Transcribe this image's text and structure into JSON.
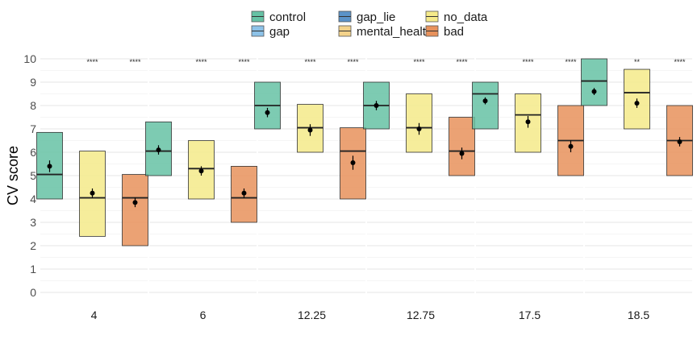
{
  "chart_data": {
    "type": "boxplot",
    "ylabel": "CV score",
    "ylim": [
      0,
      10
    ],
    "yticks": [
      0,
      1,
      2,
      3,
      4,
      5,
      6,
      7,
      8,
      9,
      10
    ],
    "legend": {
      "placement": "top",
      "entries": [
        {
          "name": "control",
          "color": "#66c2a5"
        },
        {
          "name": "gap",
          "color": "#8dc2e8"
        },
        {
          "name": "gap_lie",
          "color": "#5b93c9"
        },
        {
          "name": "mental_health",
          "color": "#f3d28a"
        },
        {
          "name": "no_data",
          "color": "#f5ea8a"
        },
        {
          "name": "bad",
          "color": "#e8925c"
        }
      ]
    },
    "panels": [
      {
        "label": "4",
        "boxes": [
          {
            "series": "control",
            "q1": 4,
            "median": 5.05,
            "q3": 6.85,
            "mean": 5.4,
            "err": 0.25,
            "stars": ""
          },
          {
            "series": "no_data",
            "q1": 2.4,
            "median": 4.05,
            "q3": 6.05,
            "mean": 4.25,
            "err": 0.2,
            "stars": "****"
          },
          {
            "series": "bad",
            "q1": 2,
            "median": 4.05,
            "q3": 5.05,
            "mean": 3.85,
            "err": 0.2,
            "stars": "****"
          }
        ]
      },
      {
        "label": "6",
        "boxes": [
          {
            "series": "control",
            "q1": 5,
            "median": 6.05,
            "q3": 7.3,
            "mean": 6.1,
            "err": 0.2,
            "stars": ""
          },
          {
            "series": "no_data",
            "q1": 4,
            "median": 5.3,
            "q3": 6.5,
            "mean": 5.2,
            "err": 0.2,
            "stars": "****"
          },
          {
            "series": "bad",
            "q1": 3,
            "median": 4.05,
            "q3": 5.4,
            "mean": 4.25,
            "err": 0.2,
            "stars": "****"
          }
        ]
      },
      {
        "label": "12.25",
        "boxes": [
          {
            "series": "control",
            "q1": 7,
            "median": 8,
            "q3": 9,
            "mean": 7.7,
            "err": 0.2,
            "stars": ""
          },
          {
            "series": "no_data",
            "q1": 6,
            "median": 7.05,
            "q3": 8.05,
            "mean": 6.95,
            "err": 0.25,
            "stars": "****"
          },
          {
            "series": "bad",
            "q1": 4,
            "median": 6.05,
            "q3": 7.05,
            "mean": 5.55,
            "err": 0.3,
            "stars": "****"
          }
        ]
      },
      {
        "label": "12.75",
        "boxes": [
          {
            "series": "control",
            "q1": 7,
            "median": 8,
            "q3": 9,
            "mean": 8,
            "err": 0.2,
            "stars": ""
          },
          {
            "series": "no_data",
            "q1": 6,
            "median": 7.05,
            "q3": 8.5,
            "mean": 7,
            "err": 0.25,
            "stars": "****"
          },
          {
            "series": "bad",
            "q1": 5,
            "median": 6.05,
            "q3": 7.5,
            "mean": 5.95,
            "err": 0.25,
            "stars": "****"
          }
        ]
      },
      {
        "label": "17.5",
        "boxes": [
          {
            "series": "control",
            "q1": 7,
            "median": 8.5,
            "q3": 9,
            "mean": 8.2,
            "err": 0.15,
            "stars": ""
          },
          {
            "series": "no_data",
            "q1": 6,
            "median": 7.6,
            "q3": 8.5,
            "mean": 7.3,
            "err": 0.25,
            "stars": "****"
          },
          {
            "series": "bad",
            "q1": 5,
            "median": 6.5,
            "q3": 8,
            "mean": 6.25,
            "err": 0.25,
            "stars": "****"
          }
        ]
      },
      {
        "label": "18.5",
        "boxes": [
          {
            "series": "control",
            "q1": 8,
            "median": 9.05,
            "q3": 10,
            "mean": 8.6,
            "err": 0.15,
            "stars": ""
          },
          {
            "series": "no_data",
            "q1": 7,
            "median": 8.55,
            "q3": 9.55,
            "mean": 8.1,
            "err": 0.2,
            "stars": "**"
          },
          {
            "series": "bad",
            "q1": 5,
            "median": 6.5,
            "q3": 8,
            "mean": 6.45,
            "err": 0.2,
            "stars": "****"
          }
        ]
      }
    ],
    "grid": true
  }
}
